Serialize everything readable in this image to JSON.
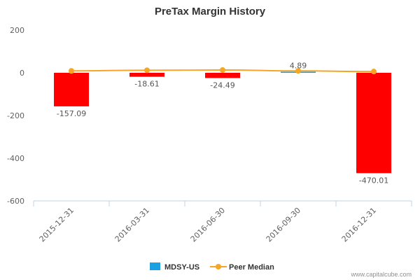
{
  "chart_data": {
    "type": "bar",
    "title": "PreTax Margin History",
    "categories": [
      "2015-12-31",
      "2016-03-31",
      "2016-06-30",
      "2016-09-30",
      "2016-12-31"
    ],
    "series": [
      {
        "name": "MDSY-US",
        "type": "bar",
        "values": [
          -157.09,
          -18.61,
          -24.49,
          4.89,
          -470.01
        ],
        "data_labels": [
          "-157.09",
          "-18.61",
          "-24.49",
          "4.89",
          "-470.01"
        ]
      },
      {
        "name": "Peer Median",
        "type": "line",
        "values": [
          9,
          12,
          13,
          9,
          6
        ]
      }
    ],
    "ylim": [
      -600,
      200
    ],
    "yticks": [
      200,
      0,
      -200,
      -400,
      -600
    ],
    "grid": false,
    "legend_position": "bottom-center"
  },
  "colors": {
    "positive_bar": "#1ba1e2",
    "negative_bar": "#ff0000",
    "peer_line": "#f5a623",
    "axis": "#c0d0e0"
  },
  "legend": {
    "items": [
      {
        "label": "MDSY-US",
        "icon": "square-marker",
        "color": "#1ba1e2"
      },
      {
        "label": "Peer Median",
        "icon": "line-circle-marker",
        "color": "#f5a623"
      }
    ]
  },
  "credit": "www.capitalcube.com"
}
